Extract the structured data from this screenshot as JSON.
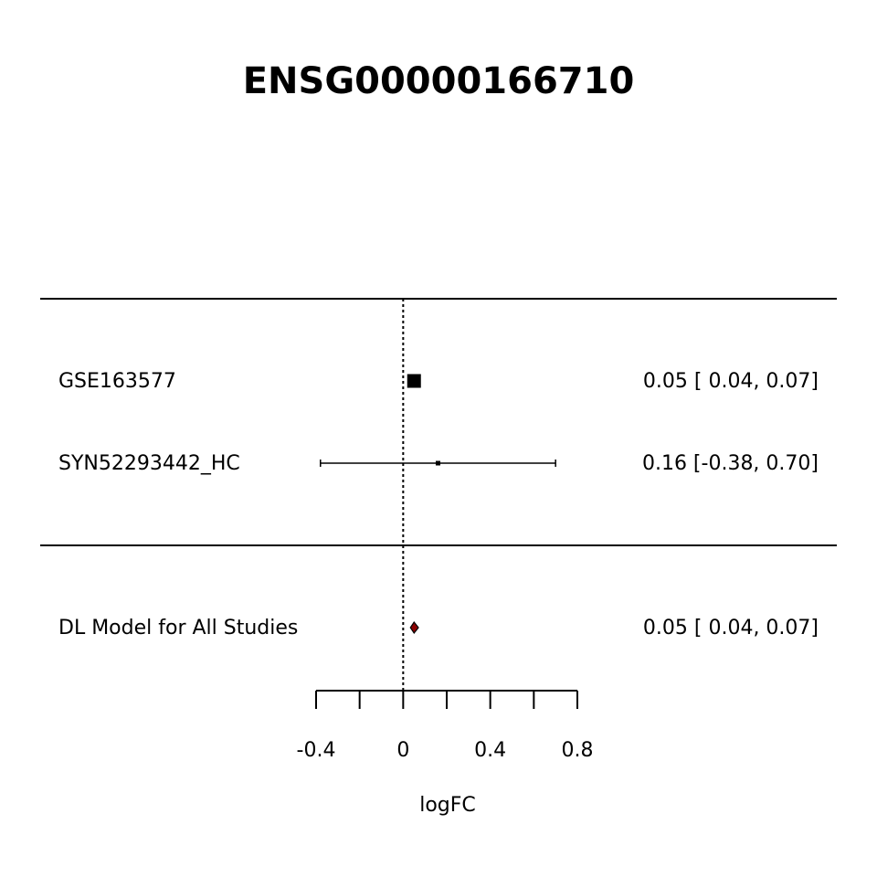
{
  "chart_data": {
    "type": "forest",
    "title": "ENSG00000166710",
    "xlabel": "logFC",
    "xlim": [
      -0.4,
      0.8
    ],
    "reference_line": 0,
    "ticks": [
      -0.4,
      -0.2,
      0,
      0.2,
      0.4,
      0.6,
      0.8
    ],
    "tick_labels": [
      "-0.4",
      "",
      "0",
      "",
      "0.4",
      "",
      "0.8"
    ],
    "studies": [
      {
        "label": "GSE163577",
        "estimate": 0.05,
        "ci": [
          0.04,
          0.07
        ],
        "text": "0.05 [ 0.04, 0.07]",
        "weight": "large"
      },
      {
        "label": "SYN52293442_HC",
        "estimate": 0.16,
        "ci": [
          -0.38,
          0.7
        ],
        "text": "0.16 [-0.38, 0.70]",
        "weight": "small"
      }
    ],
    "summary": {
      "label": "DL Model for All Studies",
      "estimate": 0.05,
      "ci": [
        0.04,
        0.07
      ],
      "text": "0.05 [ 0.04, 0.07]",
      "color": "#8b0000"
    }
  }
}
